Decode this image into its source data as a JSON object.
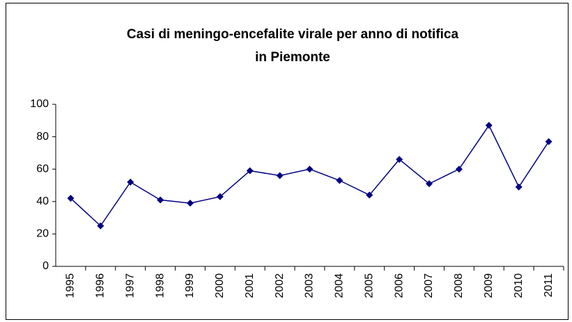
{
  "chart_data": {
    "type": "line",
    "title": [
      "Casi di meningo-encefalite virale per anno di notifica",
      "in Piemonte"
    ],
    "categories": [
      "1995",
      "1996",
      "1997",
      "1998",
      "1999",
      "2000",
      "2001",
      "2002",
      "2003",
      "2004",
      "2005",
      "2006",
      "2007",
      "2008",
      "2009",
      "2010",
      "2011"
    ],
    "values": [
      42,
      25,
      52,
      41,
      39,
      43,
      59,
      56,
      60,
      53,
      44,
      66,
      51,
      60,
      87,
      49,
      77
    ],
    "color": "#000080",
    "ylim": [
      0,
      100
    ],
    "yticks": [
      0,
      20,
      40,
      60,
      80,
      100
    ],
    "grid": false
  }
}
